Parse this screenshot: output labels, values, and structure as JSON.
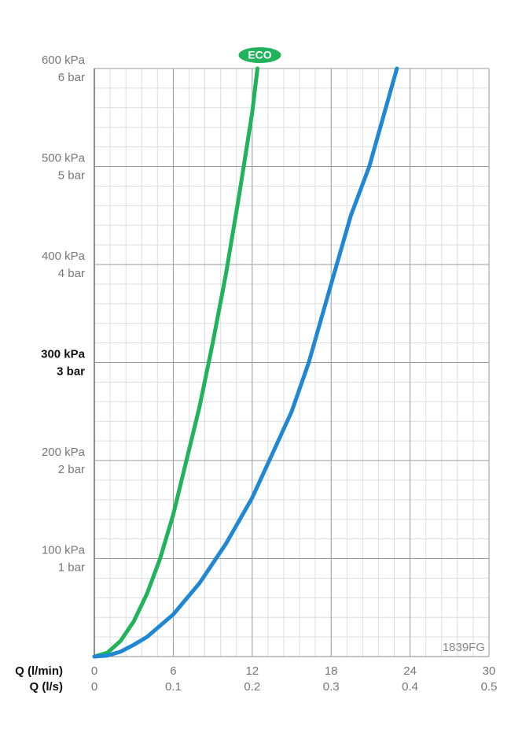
{
  "chart_data": {
    "type": "line",
    "xlabel": "Q (l/min)",
    "x2label": "Q (l/s)",
    "xlim": [
      0,
      30
    ],
    "xticks": [
      0,
      6,
      12,
      18,
      24,
      30
    ],
    "x2lim": [
      0,
      0.5
    ],
    "x2ticks": [
      0,
      0.1,
      0.2,
      0.3,
      0.4,
      0.5
    ],
    "ylim": [
      0,
      600
    ],
    "yticks": [
      {
        "value": 100,
        "label": "100 kPa"
      },
      {
        "value": 200,
        "label": "200 kPa"
      },
      {
        "value": 300,
        "label": "300 kPa"
      },
      {
        "value": 400,
        "label": "400 kPa"
      },
      {
        "value": 500,
        "label": "500 kPa"
      },
      {
        "value": 600,
        "label": "600 kPa"
      }
    ],
    "y2lim": [
      0,
      6
    ],
    "y2ticks": [
      {
        "value": 1,
        "label": "1 bar"
      },
      {
        "value": 2,
        "label": "2 bar"
      },
      {
        "value": 3,
        "label": "3 bar"
      },
      {
        "value": 4,
        "label": "4 bar"
      },
      {
        "value": 5,
        "label": "5 bar"
      },
      {
        "value": 6,
        "label": "6 bar"
      }
    ],
    "highlight_ytick": 300,
    "grid": true,
    "minor_divisions": 5,
    "annotation": "1839FG",
    "series": [
      {
        "name": "ECO",
        "color": "#21b25c",
        "x": [
          0,
          1,
          2,
          3,
          4,
          5,
          6,
          7,
          8,
          9,
          10,
          11,
          12,
          12.4
        ],
        "values": [
          0,
          4,
          16,
          36,
          64,
          100,
          145,
          200,
          255,
          320,
          390,
          470,
          555,
          600
        ]
      },
      {
        "color": "#1f87d3",
        "x": [
          0,
          1,
          2,
          3,
          4,
          6,
          8,
          10,
          12,
          13.3,
          15,
          16.3,
          18,
          19.5,
          20.9,
          23
        ],
        "values": [
          0,
          1,
          5,
          12,
          20,
          43,
          75,
          115,
          162,
          200,
          250,
          300,
          380,
          450,
          500,
          600
        ]
      }
    ]
  }
}
